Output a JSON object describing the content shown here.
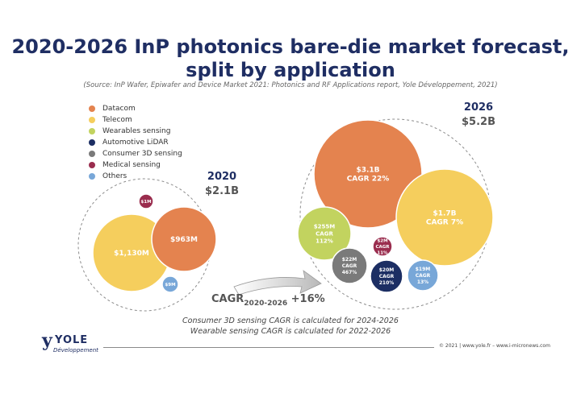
{
  "title_line1": "2020-2026 InP photonics bare-die market forecast,",
  "title_line2": "split by application",
  "source": "(Source: InP Wafer, Epiwafer and Device Market 2021: Photonics and RF Applications report, Yole Développement, 2021)",
  "legend": [
    {
      "label": "Datacom",
      "color": "#e4834f"
    },
    {
      "label": "Telecom",
      "color": "#f5ce5d"
    },
    {
      "label": "Wearables sensing",
      "color": "#c2d35f"
    },
    {
      "label": "Automotive LiDAR",
      "color": "#1c2e63"
    },
    {
      "label": "Consumer 3D sensing",
      "color": "#7a7a7a"
    },
    {
      "label": "Medical sensing",
      "color": "#9a2d4e"
    },
    {
      "label": "Others",
      "color": "#78a7d8"
    }
  ],
  "cagr": {
    "prefix": "CAGR",
    "subscript": "2020-2026",
    "suffix": " +16%"
  },
  "notes": [
    "Consumer 3D sensing CAGR is calculated for 2024-2026",
    "Wearable sensing CAGR is calculated for 2022-2026"
  ],
  "logo": {
    "name": "YOLE",
    "sub": "Développement"
  },
  "footer": "© 2021 | www.yole.fr – www.i-micronews.com",
  "chart_data": {
    "type": "bubble",
    "title": "2020-2026 InP photonics bare-die market forecast, split by application",
    "series": [
      {
        "year": "2020",
        "total": "$2.1B",
        "bubbles": [
          {
            "application": "Telecom",
            "value_musd": 1130,
            "label": "$1,130M",
            "cagr": ""
          },
          {
            "application": "Datacom",
            "value_musd": 963,
            "label": "$963M",
            "cagr": ""
          },
          {
            "application": "Medical sensing",
            "value_musd": 1,
            "label": "$1M",
            "cagr": ""
          },
          {
            "application": "Others",
            "value_musd": 9,
            "label": "$9M",
            "cagr": ""
          }
        ]
      },
      {
        "year": "2026",
        "total": "$5.2B",
        "bubbles": [
          {
            "application": "Datacom",
            "value_musd": 3100,
            "label": "$3.1B",
            "cagr": "CAGR 22%"
          },
          {
            "application": "Telecom",
            "value_musd": 1700,
            "label": "$1.7B",
            "cagr": "CAGR 7%"
          },
          {
            "application": "Wearables sensing",
            "value_musd": 255,
            "label": "$255M",
            "cagr": "CAGR 112%"
          },
          {
            "application": "Medical sensing",
            "value_musd": 2,
            "label": "$2M",
            "cagr": "CAGR 11%"
          },
          {
            "application": "Consumer 3D sensing",
            "value_musd": 22,
            "label": "$22M",
            "cagr": "CAGR 467%"
          },
          {
            "application": "Automotive LiDAR",
            "value_musd": 20,
            "label": "$20M",
            "cagr": "CAGR 210%"
          },
          {
            "application": "Others",
            "value_musd": 19,
            "label": "$19M",
            "cagr": "CAGR 13%"
          }
        ]
      }
    ],
    "overall_cagr": "CAGR 2020-2026 +16%"
  }
}
